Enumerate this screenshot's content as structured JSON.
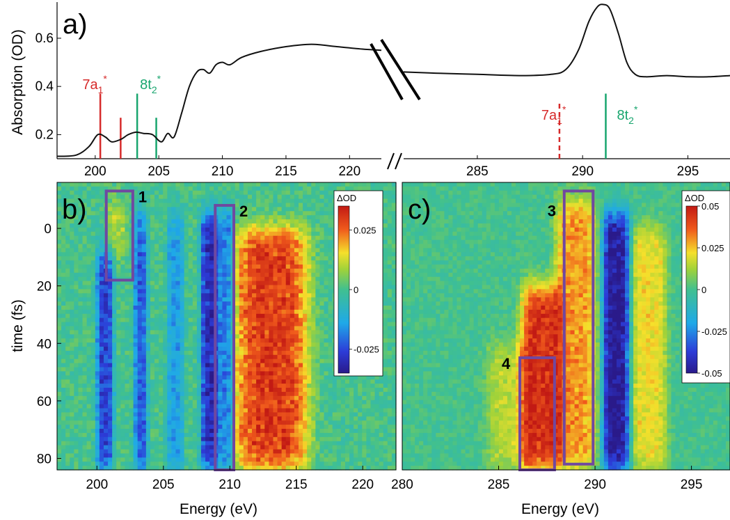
{
  "colors": {
    "red": "#d62a2a",
    "green": "#18a56e",
    "purple": "#7048a0",
    "line": "#111111"
  },
  "chart_data": [
    {
      "id": "a",
      "type": "line",
      "panel_label": "a)",
      "ylabel": "Absorption (OD)",
      "yticks": [
        "0.2",
        "0.4",
        "0.6"
      ],
      "ylim": [
        0.1,
        0.75
      ],
      "segments": [
        {
          "xlim": [
            197,
            222.5
          ],
          "xticks": [
            "200",
            "205",
            "210",
            "215",
            "220"
          ],
          "x": [
            197,
            198.5,
            199.5,
            200.2,
            200.8,
            201.3,
            202,
            202.6,
            203.2,
            203.8,
            204.5,
            205.2,
            205.7,
            206.2,
            206.8,
            207.4,
            208,
            208.5,
            209,
            209.5,
            210,
            210.6,
            211.5,
            213,
            215,
            217,
            219,
            221,
            222.5
          ],
          "y": [
            0.11,
            0.115,
            0.15,
            0.2,
            0.19,
            0.17,
            0.18,
            0.2,
            0.21,
            0.205,
            0.2,
            0.17,
            0.205,
            0.19,
            0.29,
            0.4,
            0.46,
            0.47,
            0.455,
            0.49,
            0.5,
            0.49,
            0.52,
            0.545,
            0.565,
            0.575,
            0.565,
            0.555,
            0.55
          ]
        },
        {
          "xlim": [
            281.5,
            297
          ],
          "xticks": [
            "285",
            "290",
            "295"
          ],
          "x": [
            281.5,
            283,
            285,
            287,
            288.5,
            289.2,
            289.8,
            290.3,
            290.7,
            291.0,
            291.3,
            291.7,
            292.1,
            292.5,
            293,
            294,
            295,
            296,
            297
          ],
          "y": [
            0.46,
            0.455,
            0.45,
            0.445,
            0.45,
            0.47,
            0.55,
            0.67,
            0.73,
            0.74,
            0.72,
            0.62,
            0.5,
            0.45,
            0.44,
            0.445,
            0.44,
            0.44,
            0.445
          ]
        }
      ],
      "transitions": [
        {
          "label": "7a",
          "sub": "1",
          "sup": "*",
          "color": "red",
          "lines": [
            {
              "x": 200.4,
              "top": 0.37
            },
            {
              "x": 202.0,
              "top": 0.27
            }
          ],
          "dashed": false
        },
        {
          "label": "8t",
          "sub": "2",
          "sup": "*",
          "color": "green",
          "lines": [
            {
              "x": 203.3,
              "top": 0.37
            },
            {
              "x": 204.8,
              "top": 0.27
            }
          ],
          "dashed": false
        },
        {
          "label": "7a",
          "sub": "1",
          "sup": "*",
          "color": "red",
          "lines": [
            {
              "x": 288.9,
              "top": 0.34
            }
          ],
          "dashed": true
        },
        {
          "label": "8t",
          "sub": "2",
          "sup": "*",
          "color": "green",
          "lines": [
            {
              "x": 291.1,
              "top": 0.37
            }
          ],
          "dashed": false
        }
      ]
    },
    {
      "id": "b",
      "type": "heatmap",
      "panel_label": "b)",
      "xlabel": "Energy (eV)",
      "ylabel": "time (fs)",
      "xlim": [
        197,
        222.5
      ],
      "xticks": [
        "200",
        "205",
        "210",
        "215",
        "220"
      ],
      "ylim": [
        84,
        -16
      ],
      "yticks": [
        "0",
        "20",
        "40",
        "60",
        "80"
      ],
      "colorbar": {
        "title": "ΔOD",
        "ticks": [
          "0.025",
          "0",
          "-0.025"
        ],
        "range": [
          -0.035,
          0.035
        ]
      },
      "features": [
        {
          "x": 200.6,
          "width": 0.55,
          "t_start": 8,
          "t_end": 84,
          "amp": -0.026
        },
        {
          "x": 203.3,
          "width": 0.45,
          "t_start": -5,
          "t_end": 84,
          "amp": -0.022
        },
        {
          "x": 205.9,
          "width": 0.55,
          "t_start": -5,
          "t_end": 84,
          "amp": -0.015
        },
        {
          "x": 208.5,
          "width": 0.6,
          "t_start": -5,
          "t_end": 84,
          "amp": -0.03
        },
        {
          "x": 209.8,
          "width": 0.5,
          "t_start": -5,
          "t_end": 84,
          "amp": -0.022
        },
        {
          "x": 213.1,
          "width": 2.4,
          "t_start": 0,
          "t_end": 84,
          "amp": 0.03
        },
        {
          "x": 201.5,
          "width": 0.6,
          "t_start": -10,
          "t_end": 10,
          "amp": 0.01
        }
      ],
      "regions": [
        {
          "label": "1",
          "x0": 200.7,
          "x1": 202.7,
          "t0": -13,
          "t1": 18
        },
        {
          "label": "2",
          "x0": 208.9,
          "x1": 210.3,
          "t0": -8,
          "t1": 84
        }
      ]
    },
    {
      "id": "c",
      "type": "heatmap",
      "panel_label": "c)",
      "xlabel": "Energy (eV)",
      "xlim": [
        280,
        297
      ],
      "xticks": [
        "280",
        "285",
        "290",
        "295"
      ],
      "ylim": [
        84,
        -16
      ],
      "colorbar": {
        "title": "ΔOD",
        "ticks": [
          "0.05",
          "0.025",
          "0",
          "-0.025",
          "-0.05"
        ],
        "range": [
          -0.05,
          0.05
        ]
      },
      "features": [
        {
          "x": 287.2,
          "width": 0.9,
          "t_start": 20,
          "t_end": 84,
          "amp": 0.045
        },
        {
          "x": 289.0,
          "width": 0.9,
          "t_start": -10,
          "t_end": 84,
          "amp": 0.03
        },
        {
          "x": 291.1,
          "width": 0.6,
          "t_start": -5,
          "t_end": 84,
          "amp": -0.05
        },
        {
          "x": 292.8,
          "width": 0.8,
          "t_start": 0,
          "t_end": 84,
          "amp": 0.022
        },
        {
          "x": 285.5,
          "width": 1.0,
          "t_start": 40,
          "t_end": 84,
          "amp": 0.015
        }
      ],
      "regions": [
        {
          "label": "3",
          "x0": 288.4,
          "x1": 289.9,
          "t0": -13,
          "t1": 82
        },
        {
          "label": "4",
          "x0": 286.1,
          "x1": 287.9,
          "t0": 45,
          "t1": 84
        }
      ]
    }
  ]
}
